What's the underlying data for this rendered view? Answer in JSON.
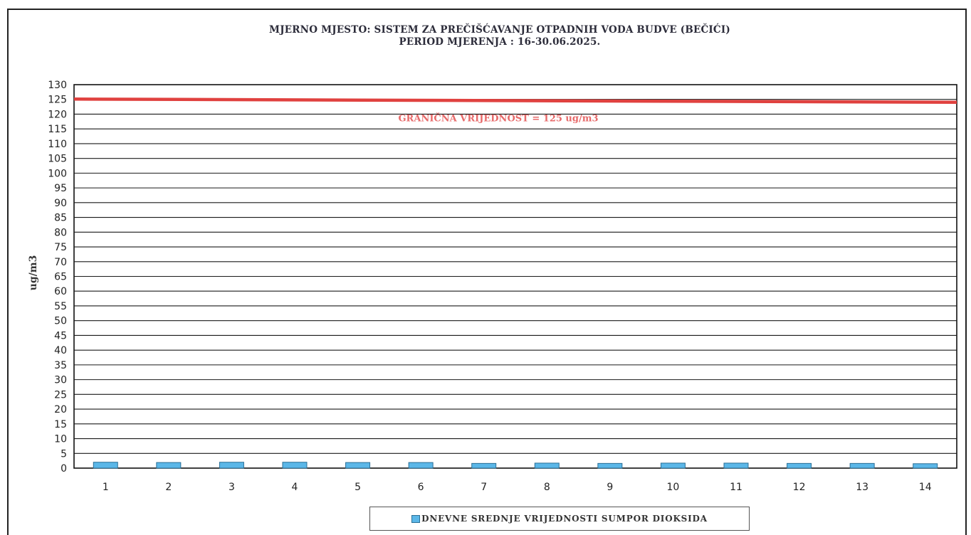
{
  "title": {
    "line1": "MJERNO MJESTO: SISTEM  ZA PREČIŠĆAVANJE  OTPADNIH VODA BUDVE (BEČIĆI)",
    "line2": "PERIOD MJERENJA : 16-30.06.2025."
  },
  "colors": {
    "bar_fill": "#5bb7e8",
    "bar_stroke": "#2b6f96",
    "limit_line": "#e0413f",
    "limit_text": "#e76a6a",
    "grid": "#1a1a1a"
  },
  "chart_data": {
    "type": "bar",
    "categories": [
      "1",
      "2",
      "3",
      "4",
      "5",
      "6",
      "7",
      "8",
      "9",
      "10",
      "11",
      "12",
      "13",
      "14"
    ],
    "series": [
      {
        "name": "DNEVNE SREDNJE VRIJEDNOSTI SUMPOR DIOKSIDA",
        "values": [
          2,
          1.9,
          2,
          2,
          1.9,
          1.9,
          1.6,
          1.7,
          1.6,
          1.7,
          1.7,
          1.6,
          1.6,
          1.5
        ]
      }
    ],
    "ylabel": "ug/m3",
    "xlabel": "",
    "ylim": [
      0,
      130
    ],
    "yticks": [
      0,
      5,
      10,
      15,
      20,
      25,
      30,
      35,
      40,
      45,
      50,
      55,
      60,
      65,
      70,
      75,
      80,
      85,
      90,
      95,
      100,
      105,
      110,
      115,
      120,
      125,
      130
    ],
    "grid": true,
    "limit": {
      "value": 125,
      "label": "GRANIČNA VRIJEDNOST = 125 ug/m3"
    },
    "legend_position": "bottom"
  }
}
